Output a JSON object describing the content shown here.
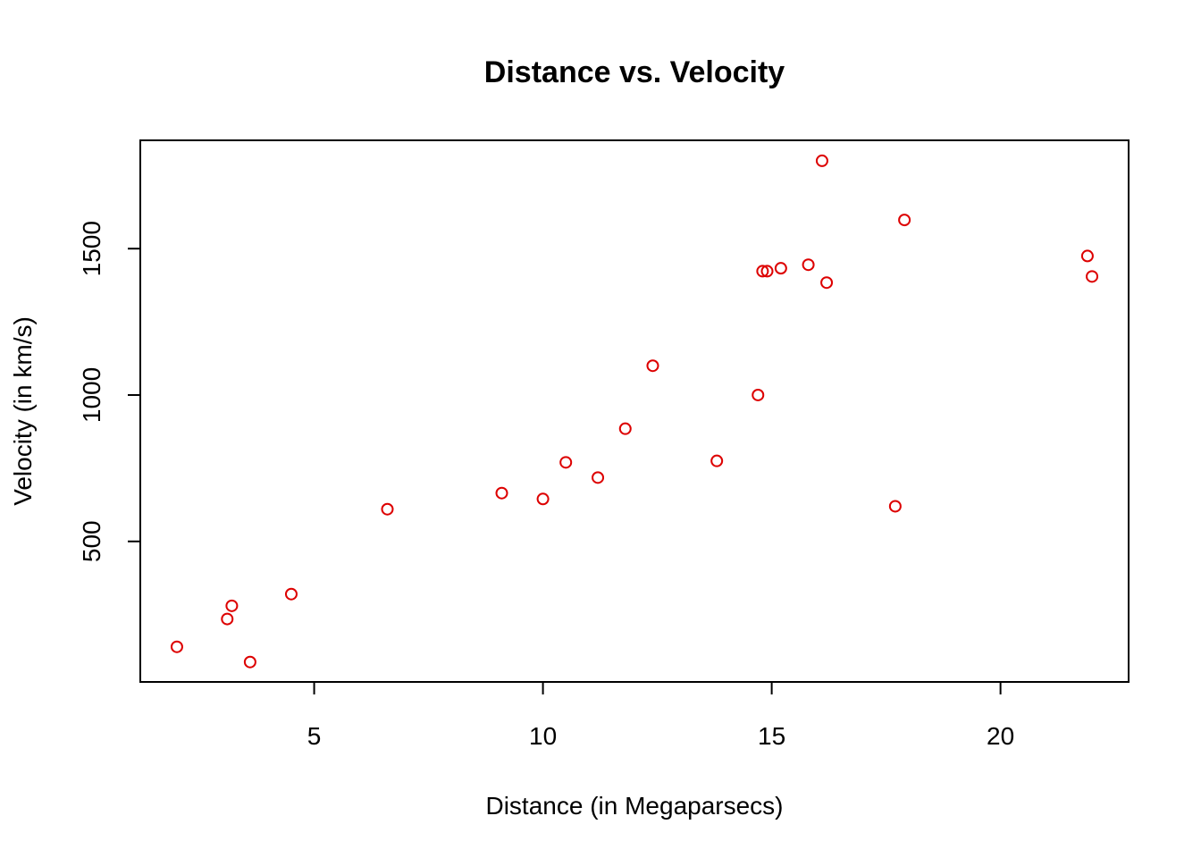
{
  "chart_data": {
    "type": "scatter",
    "title": "Distance vs. Velocity",
    "xlabel": "Distance (in Megaparsecs)",
    "ylabel": "Velocity (in km/s)",
    "xlim": [
      1.2,
      22.8
    ],
    "ylim": [
      20,
      1870
    ],
    "xticks": [
      5,
      10,
      15,
      20
    ],
    "yticks": [
      500,
      1000,
      1500
    ],
    "grid": false,
    "point_color": "#dd0000",
    "points": [
      {
        "x": 2.0,
        "y": 140
      },
      {
        "x": 3.1,
        "y": 235
      },
      {
        "x": 3.2,
        "y": 280
      },
      {
        "x": 3.6,
        "y": 88
      },
      {
        "x": 4.5,
        "y": 320
      },
      {
        "x": 6.6,
        "y": 610
      },
      {
        "x": 9.1,
        "y": 665
      },
      {
        "x": 10.0,
        "y": 645
      },
      {
        "x": 10.5,
        "y": 770
      },
      {
        "x": 11.2,
        "y": 718
      },
      {
        "x": 11.8,
        "y": 885
      },
      {
        "x": 12.4,
        "y": 1100
      },
      {
        "x": 13.8,
        "y": 775
      },
      {
        "x": 14.7,
        "y": 1000
      },
      {
        "x": 14.8,
        "y": 1423
      },
      {
        "x": 14.9,
        "y": 1423
      },
      {
        "x": 15.2,
        "y": 1433
      },
      {
        "x": 15.8,
        "y": 1445
      },
      {
        "x": 16.1,
        "y": 1800
      },
      {
        "x": 16.2,
        "y": 1384
      },
      {
        "x": 17.7,
        "y": 620
      },
      {
        "x": 17.9,
        "y": 1598
      },
      {
        "x": 21.9,
        "y": 1475
      },
      {
        "x": 22.0,
        "y": 1405
      }
    ]
  }
}
